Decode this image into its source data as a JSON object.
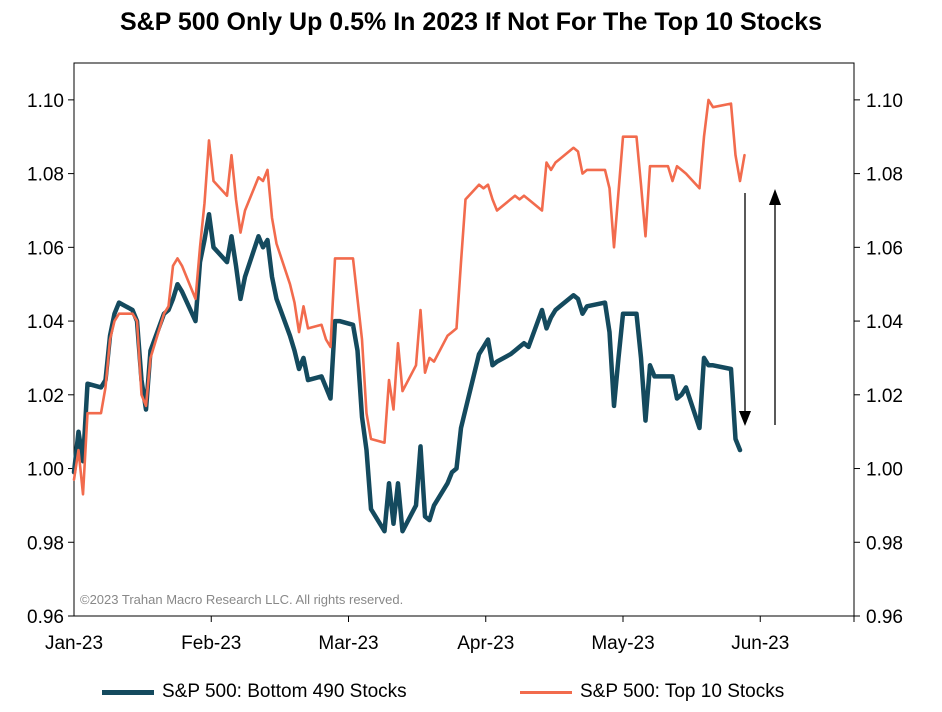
{
  "chart_data": {
    "type": "line",
    "title": "S&P 500 Only Up 0.5% In 2023 If Not For The Top 10 Stocks",
    "ylim": [
      0.96,
      1.11
    ],
    "y_ticks": [
      "0.96",
      "0.98",
      "1.00",
      "1.02",
      "1.04",
      "1.06",
      "1.08",
      "1.10"
    ],
    "x_ticks": [
      "Jan-23",
      "Feb-23",
      "Mar-23",
      "Apr-23",
      "May-23",
      "Jun-23"
    ],
    "copyright": "©2023 Trahan Macro Research LLC. All rights reserved.",
    "legend_position": "bottom",
    "grid": false,
    "annotations": [
      {
        "type": "arrow-down",
        "note": "double arrow between series"
      },
      {
        "type": "arrow-up"
      }
    ],
    "series": [
      {
        "name": "S&P 500: Bottom 490 Stocks",
        "color": "#144a5e",
        "values": [
          [
            0,
            0.999
          ],
          [
            1,
            1.01
          ],
          [
            2,
            1.002
          ],
          [
            3,
            1.023
          ],
          [
            6,
            1.022
          ],
          [
            7,
            1.024
          ],
          [
            8,
            1.036
          ],
          [
            9,
            1.042
          ],
          [
            10,
            1.045
          ],
          [
            13,
            1.043
          ],
          [
            14,
            1.04
          ],
          [
            15,
            1.024
          ],
          [
            16,
            1.016
          ],
          [
            17,
            1.032
          ],
          [
            20,
            1.042
          ],
          [
            21,
            1.043
          ],
          [
            22,
            1.046
          ],
          [
            23,
            1.05
          ],
          [
            24,
            1.048
          ],
          [
            27,
            1.04
          ],
          [
            28,
            1.056
          ],
          [
            29,
            1.062
          ],
          [
            30,
            1.069
          ],
          [
            31,
            1.06
          ],
          [
            34,
            1.056
          ],
          [
            35,
            1.063
          ],
          [
            36,
            1.055
          ],
          [
            37,
            1.046
          ],
          [
            38,
            1.052
          ],
          [
            41,
            1.063
          ],
          [
            42,
            1.06
          ],
          [
            43,
            1.062
          ],
          [
            44,
            1.052
          ],
          [
            45,
            1.046
          ],
          [
            48,
            1.036
          ],
          [
            49,
            1.032
          ],
          [
            50,
            1.027
          ],
          [
            51,
            1.03
          ],
          [
            52,
            1.024
          ],
          [
            55,
            1.025
          ],
          [
            56,
            1.022
          ],
          [
            57,
            1.019
          ],
          [
            58,
            1.04
          ],
          [
            59,
            1.04
          ],
          [
            62,
            1.039
          ],
          [
            63,
            1.032
          ],
          [
            64,
            1.014
          ],
          [
            65,
            1.005
          ],
          [
            66,
            0.989
          ],
          [
            69,
            0.983
          ],
          [
            70,
            0.996
          ],
          [
            71,
            0.985
          ],
          [
            72,
            0.996
          ],
          [
            73,
            0.983
          ],
          [
            76,
            0.99
          ],
          [
            77,
            1.006
          ],
          [
            78,
            0.987
          ],
          [
            79,
            0.986
          ],
          [
            80,
            0.99
          ],
          [
            83,
            0.996
          ],
          [
            84,
            0.999
          ],
          [
            85,
            1.0
          ],
          [
            86,
            1.011
          ],
          [
            87,
            1.016
          ],
          [
            90,
            1.031
          ],
          [
            91,
            1.033
          ],
          [
            92,
            1.035
          ],
          [
            93,
            1.028
          ],
          [
            94,
            1.029
          ],
          [
            97,
            1.031
          ],
          [
            98,
            1.032
          ],
          [
            99,
            1.033
          ],
          [
            100,
            1.034
          ],
          [
            101,
            1.033
          ],
          [
            104,
            1.043
          ],
          [
            105,
            1.038
          ],
          [
            106,
            1.041
          ],
          [
            107,
            1.043
          ],
          [
            108,
            1.044
          ],
          [
            111,
            1.047
          ],
          [
            112,
            1.046
          ],
          [
            113,
            1.042
          ],
          [
            114,
            1.044
          ],
          [
            118,
            1.045
          ],
          [
            119,
            1.037
          ],
          [
            120,
            1.017
          ],
          [
            121,
            1.03
          ],
          [
            122,
            1.042
          ],
          [
            125,
            1.042
          ],
          [
            126,
            1.03
          ],
          [
            127,
            1.013
          ],
          [
            128,
            1.028
          ],
          [
            129,
            1.025
          ],
          [
            132,
            1.025
          ],
          [
            133,
            1.025
          ],
          [
            134,
            1.019
          ],
          [
            135,
            1.02
          ],
          [
            136,
            1.022
          ],
          [
            139,
            1.011
          ],
          [
            140,
            1.03
          ],
          [
            141,
            1.028
          ],
          [
            142,
            1.028
          ],
          [
            146,
            1.027
          ],
          [
            147,
            1.008
          ],
          [
            148,
            1.005
          ]
        ]
      },
      {
        "name": "S&P 500: Top 10 Stocks",
        "color": "#f26b4d",
        "values": [
          [
            0,
            0.997
          ],
          [
            1,
            1.005
          ],
          [
            2,
            0.993
          ],
          [
            3,
            1.015
          ],
          [
            6,
            1.015
          ],
          [
            7,
            1.022
          ],
          [
            8,
            1.035
          ],
          [
            9,
            1.04
          ],
          [
            10,
            1.042
          ],
          [
            13,
            1.042
          ],
          [
            14,
            1.04
          ],
          [
            15,
            1.02
          ],
          [
            16,
            1.017
          ],
          [
            17,
            1.03
          ],
          [
            20,
            1.042
          ],
          [
            21,
            1.044
          ],
          [
            22,
            1.055
          ],
          [
            23,
            1.057
          ],
          [
            24,
            1.055
          ],
          [
            27,
            1.046
          ],
          [
            28,
            1.06
          ],
          [
            29,
            1.072
          ],
          [
            30,
            1.089
          ],
          [
            31,
            1.078
          ],
          [
            34,
            1.074
          ],
          [
            35,
            1.085
          ],
          [
            36,
            1.073
          ],
          [
            37,
            1.064
          ],
          [
            38,
            1.07
          ],
          [
            41,
            1.079
          ],
          [
            42,
            1.078
          ],
          [
            43,
            1.081
          ],
          [
            44,
            1.068
          ],
          [
            45,
            1.061
          ],
          [
            48,
            1.05
          ],
          [
            49,
            1.045
          ],
          [
            50,
            1.037
          ],
          [
            51,
            1.044
          ],
          [
            52,
            1.038
          ],
          [
            55,
            1.039
          ],
          [
            56,
            1.035
          ],
          [
            57,
            1.033
          ],
          [
            58,
            1.057
          ],
          [
            59,
            1.057
          ],
          [
            62,
            1.057
          ],
          [
            63,
            1.046
          ],
          [
            64,
            1.035
          ],
          [
            65,
            1.015
          ],
          [
            66,
            1.008
          ],
          [
            69,
            1.007
          ],
          [
            70,
            1.024
          ],
          [
            71,
            1.016
          ],
          [
            72,
            1.034
          ],
          [
            73,
            1.021
          ],
          [
            76,
            1.028
          ],
          [
            77,
            1.043
          ],
          [
            78,
            1.026
          ],
          [
            79,
            1.03
          ],
          [
            80,
            1.029
          ],
          [
            83,
            1.036
          ],
          [
            84,
            1.037
          ],
          [
            85,
            1.038
          ],
          [
            86,
            1.056
          ],
          [
            87,
            1.073
          ],
          [
            90,
            1.077
          ],
          [
            91,
            1.076
          ],
          [
            92,
            1.077
          ],
          [
            93,
            1.073
          ],
          [
            94,
            1.07
          ],
          [
            97,
            1.073
          ],
          [
            98,
            1.074
          ],
          [
            99,
            1.073
          ],
          [
            100,
            1.074
          ],
          [
            101,
            1.073
          ],
          [
            104,
            1.07
          ],
          [
            105,
            1.083
          ],
          [
            106,
            1.081
          ],
          [
            107,
            1.083
          ],
          [
            108,
            1.084
          ],
          [
            111,
            1.087
          ],
          [
            112,
            1.086
          ],
          [
            113,
            1.08
          ],
          [
            114,
            1.081
          ],
          [
            118,
            1.081
          ],
          [
            119,
            1.076
          ],
          [
            120,
            1.06
          ],
          [
            121,
            1.075
          ],
          [
            122,
            1.09
          ],
          [
            125,
            1.09
          ],
          [
            126,
            1.077
          ],
          [
            127,
            1.063
          ],
          [
            128,
            1.082
          ],
          [
            129,
            1.082
          ],
          [
            132,
            1.082
          ],
          [
            133,
            1.078
          ],
          [
            134,
            1.082
          ],
          [
            135,
            1.081
          ],
          [
            136,
            1.08
          ],
          [
            139,
            1.076
          ],
          [
            140,
            1.09
          ],
          [
            141,
            1.1
          ],
          [
            142,
            1.098
          ],
          [
            146,
            1.099
          ],
          [
            147,
            1.085
          ],
          [
            148,
            1.078
          ],
          [
            149,
            1.085
          ]
        ]
      }
    ]
  }
}
